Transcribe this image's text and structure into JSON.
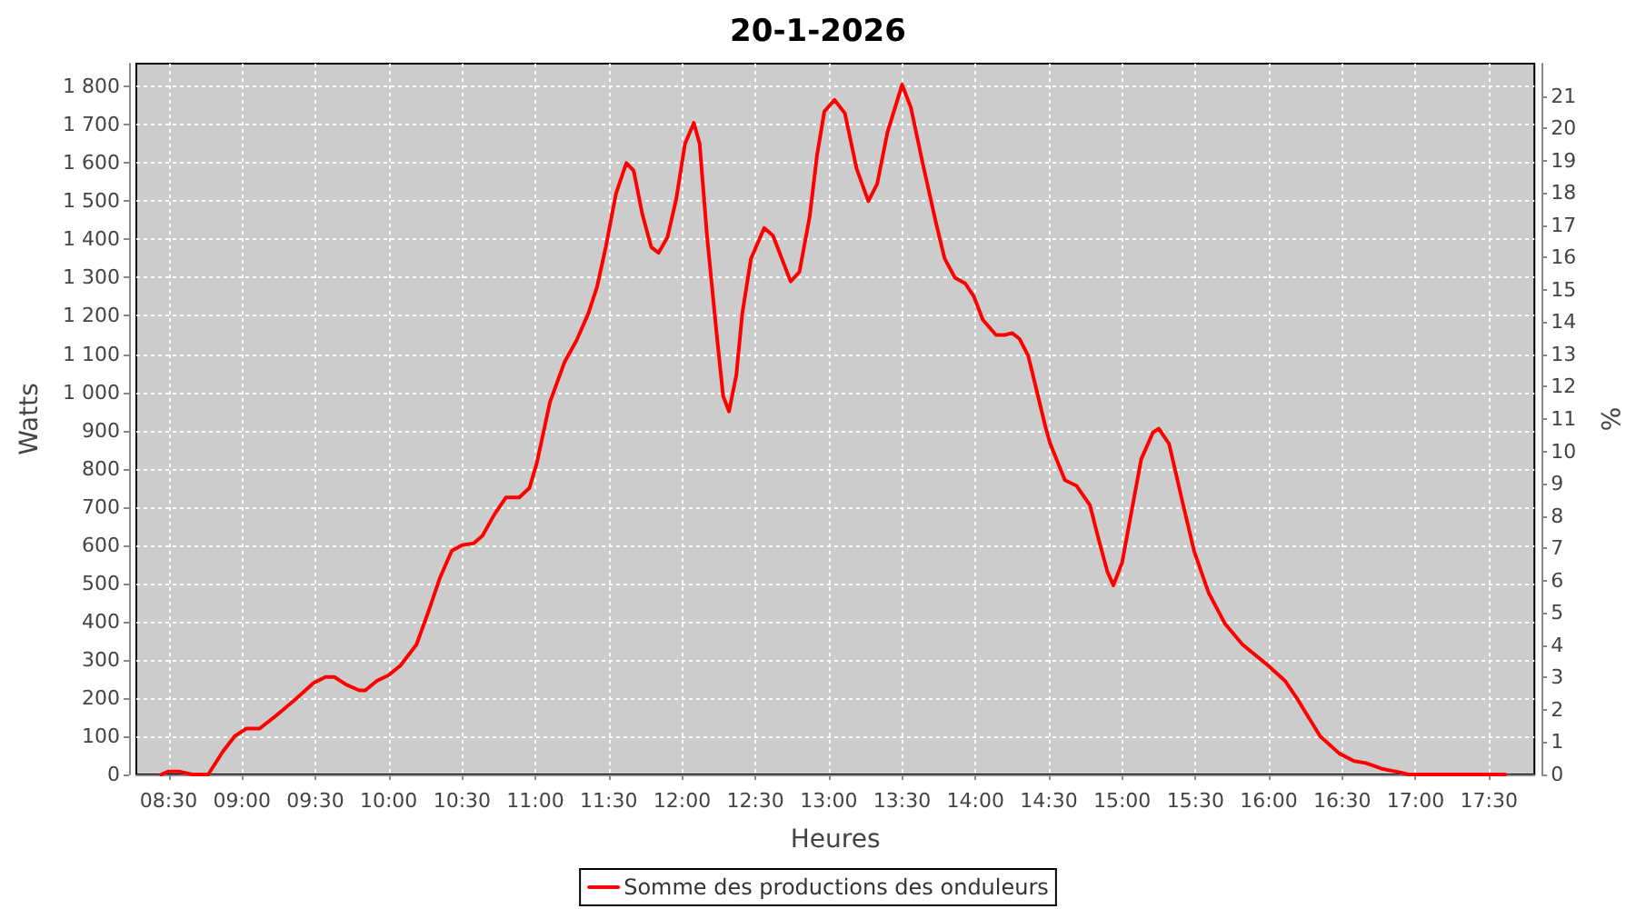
{
  "chart_data": {
    "type": "line",
    "title": "20-1-2026",
    "xlabel": "Heures",
    "ylabel": "Watts",
    "y2label": "%",
    "x": [
      8.45,
      8.5,
      8.57,
      8.66,
      8.77,
      8.87,
      8.95,
      9.03,
      9.12,
      9.22,
      9.36,
      9.49,
      9.57,
      9.63,
      9.71,
      9.8,
      9.84,
      9.92,
      10,
      10.08,
      10.19,
      10.27,
      10.35,
      10.43,
      10.5,
      10.58,
      10.64,
      10.72,
      10.8,
      10.89,
      10.96,
      11.01,
      11.1,
      11.2,
      11.28,
      11.36,
      11.42,
      11.48,
      11.55,
      11.62,
      11.67,
      11.73,
      11.79,
      11.84,
      11.9,
      11.96,
      12.02,
      12.08,
      12.12,
      12.17,
      12.23,
      12.28,
      12.32,
      12.37,
      12.41,
      12.47,
      12.56,
      12.62,
      12.68,
      12.74,
      12.8,
      12.87,
      12.92,
      12.97,
      13.04,
      13.11,
      13.19,
      13.27,
      13.33,
      13.4,
      13.5,
      13.56,
      13.64,
      13.73,
      13.79,
      13.86,
      13.93,
      13.99,
      14.05,
      14.14,
      14.2,
      14.25,
      14.3,
      14.36,
      14.42,
      14.48,
      14.51,
      14.61,
      14.69,
      14.78,
      14.84,
      14.9,
      14.94,
      15,
      15.06,
      15.13,
      15.21,
      15.25,
      15.32,
      15.41,
      15.49,
      15.59,
      15.7,
      15.82,
      15.98,
      16.11,
      16.19,
      16.27,
      16.35,
      16.48,
      16.58,
      16.66,
      16.77,
      16.9,
      16.95,
      17.61
    ],
    "series": [
      {
        "name": "Somme des productions des onduleurs",
        "color": "#ff0000",
        "values": [
          0,
          8,
          8,
          0,
          0,
          60,
          100,
          120,
          120,
          150,
          195,
          240,
          255,
          255,
          235,
          220,
          220,
          245,
          260,
          285,
          340,
          425,
          515,
          585,
          600,
          605,
          625,
          680,
          725,
          725,
          750,
          815,
          975,
          1080,
          1135,
          1205,
          1275,
          1380,
          1520,
          1600,
          1580,
          1465,
          1380,
          1365,
          1405,
          1505,
          1650,
          1705,
          1650,
          1410,
          1175,
          990,
          950,
          1045,
          1205,
          1350,
          1430,
          1410,
          1350,
          1290,
          1315,
          1460,
          1620,
          1735,
          1765,
          1730,
          1585,
          1500,
          1545,
          1680,
          1805,
          1745,
          1600,
          1445,
          1350,
          1300,
          1285,
          1250,
          1190,
          1150,
          1150,
          1155,
          1140,
          1095,
          1000,
          905,
          865,
          770,
          755,
          705,
          615,
          530,
          495,
          555,
          680,
          825,
          895,
          905,
          865,
          715,
          585,
          475,
          395,
          340,
          290,
          245,
          200,
          150,
          100,
          55,
          35,
          30,
          15,
          5,
          0,
          0
        ]
      }
    ],
    "xlim": [
      8.28,
      17.81
    ],
    "xticks": [
      {
        "value": 8.5,
        "label": "08:30"
      },
      {
        "value": 9,
        "label": "09:00"
      },
      {
        "value": 9.5,
        "label": "09:30"
      },
      {
        "value": 10,
        "label": "10:00"
      },
      {
        "value": 10.5,
        "label": "10:30"
      },
      {
        "value": 11,
        "label": "11:00"
      },
      {
        "value": 11.5,
        "label": "11:30"
      },
      {
        "value": 12,
        "label": "12:00"
      },
      {
        "value": 12.5,
        "label": "12:30"
      },
      {
        "value": 13,
        "label": "13:00"
      },
      {
        "value": 13.5,
        "label": "13:30"
      },
      {
        "value": 14,
        "label": "14:00"
      },
      {
        "value": 14.5,
        "label": "14:30"
      },
      {
        "value": 15,
        "label": "15:00"
      },
      {
        "value": 15.5,
        "label": "15:30"
      },
      {
        "value": 16,
        "label": "16:00"
      },
      {
        "value": 16.5,
        "label": "16:30"
      },
      {
        "value": 17,
        "label": "17:00"
      },
      {
        "value": 17.5,
        "label": "17:30"
      }
    ],
    "ylim": [
      0,
      1860
    ],
    "yticks": [
      0,
      100,
      200,
      300,
      400,
      500,
      600,
      700,
      800,
      900,
      {
        "value": 1000,
        "label": "1 000"
      },
      {
        "value": 1100,
        "label": "1 100"
      },
      {
        "value": 1200,
        "label": "1 200"
      },
      {
        "value": 1300,
        "label": "1 300"
      },
      {
        "value": 1400,
        "label": "1 400"
      },
      {
        "value": 1500,
        "label": "1 500"
      },
      {
        "value": 1600,
        "label": "1 600"
      },
      {
        "value": 1700,
        "label": "1 700"
      },
      {
        "value": 1800,
        "label": "1 800"
      }
    ],
    "y2lim": [
      0,
      22
    ],
    "y2ticks": [
      0,
      1,
      2,
      3,
      4,
      5,
      6,
      7,
      8,
      9,
      10,
      11,
      12,
      13,
      14,
      15,
      16,
      17,
      18,
      19,
      20,
      21
    ],
    "grid": true,
    "legend": "bottom",
    "marker": "none",
    "line_style": "solid"
  }
}
